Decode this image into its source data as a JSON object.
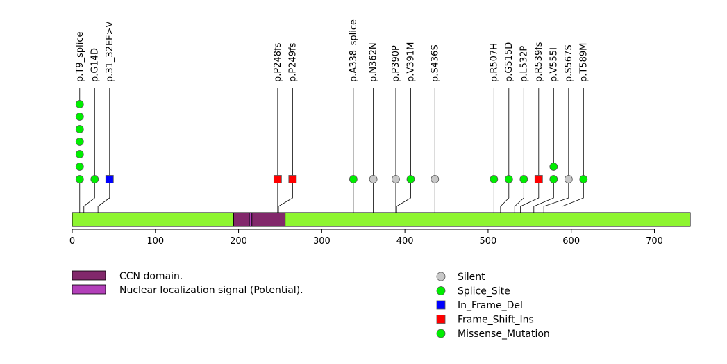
{
  "chart_data": {
    "type": "lollipop",
    "xlim": [
      0,
      743
    ],
    "ticks": [
      0,
      100,
      200,
      300,
      400,
      500,
      600,
      700
    ],
    "protein_bar_color": "#8ef530",
    "domains": [
      {
        "name": "CCN domain.",
        "start": 194,
        "end": 256,
        "color": "#82286b"
      },
      {
        "name": "Nuclear localization signal (Potential).",
        "start": 213,
        "end": 216,
        "color": "#b23fb9"
      }
    ],
    "mutations": [
      {
        "label": "p.T9_splice",
        "pos": 9,
        "count": 7,
        "type": "Splice_Site"
      },
      {
        "label": "p.G14D",
        "pos": 14,
        "count": 1,
        "type": "Missense_Mutation"
      },
      {
        "label": "p.31_32EF>V",
        "pos": 31,
        "count": 1,
        "type": "In_Frame_Del"
      },
      {
        "label": "p.P248fs",
        "pos": 247,
        "count": 1,
        "type": "Frame_Shift_Ins"
      },
      {
        "label": "p.P249fs",
        "pos": 248,
        "count": 1,
        "type": "Frame_Shift_Ins"
      },
      {
        "label": "p.A338_splice",
        "pos": 338,
        "count": 1,
        "type": "Splice_Site"
      },
      {
        "label": "p.N362N",
        "pos": 362,
        "count": 1,
        "type": "Silent"
      },
      {
        "label": "p.P390P",
        "pos": 389,
        "count": 1,
        "type": "Silent"
      },
      {
        "label": "p.V391M",
        "pos": 390,
        "count": 1,
        "type": "Missense_Mutation"
      },
      {
        "label": "p.S436S",
        "pos": 436,
        "count": 1,
        "type": "Silent"
      },
      {
        "label": "p.R507H",
        "pos": 507,
        "count": 1,
        "type": "Missense_Mutation"
      },
      {
        "label": "p.G515D",
        "pos": 515,
        "count": 1,
        "type": "Missense_Mutation"
      },
      {
        "label": "p.L532P",
        "pos": 532,
        "count": 1,
        "type": "Missense_Mutation"
      },
      {
        "label": "p.R539fs",
        "pos": 539,
        "count": 1,
        "type": "Frame_Shift_Ins"
      },
      {
        "label": "p.V555I",
        "pos": 555,
        "count": 2,
        "type": "Missense_Mutation"
      },
      {
        "label": "p.S567S",
        "pos": 567,
        "count": 1,
        "type": "Silent"
      },
      {
        "label": "p.T589M",
        "pos": 589,
        "count": 1,
        "type": "Missense_Mutation"
      }
    ],
    "mutation_types": [
      {
        "name": "Silent",
        "shape": "circle",
        "color": "#c8c8c8"
      },
      {
        "name": "Splice_Site",
        "shape": "circle",
        "color": "#00ee00"
      },
      {
        "name": "In_Frame_Del",
        "shape": "square",
        "color": "#0000ff"
      },
      {
        "name": "Frame_Shift_Ins",
        "shape": "square",
        "color": "#ff0000"
      },
      {
        "name": "Missense_Mutation",
        "shape": "circle",
        "color": "#00ee00"
      }
    ]
  }
}
